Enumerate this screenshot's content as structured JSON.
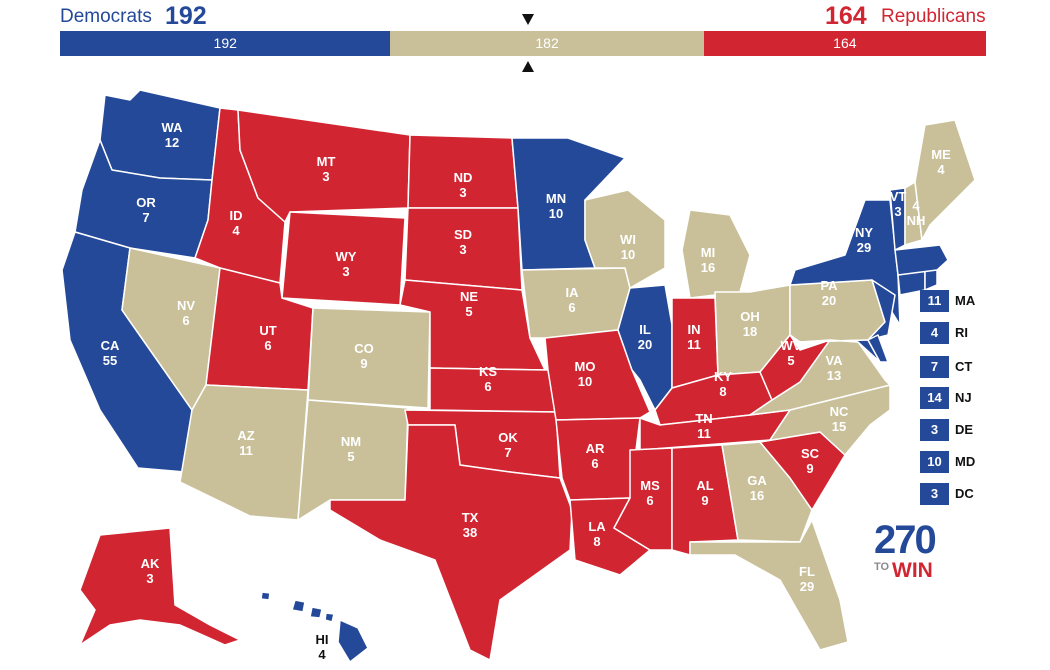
{
  "header": {
    "dem_label": "Democrats",
    "dem_total": "192",
    "rep_total": "164",
    "rep_label": "Republicans",
    "bar": {
      "dem": {
        "value": 192,
        "label": "192"
      },
      "tossup": {
        "value": 182,
        "label": "182"
      },
      "rep": {
        "value": 164,
        "label": "164"
      }
    }
  },
  "colors": {
    "dem": "#244999",
    "rep": "#d22532",
    "tossup": "#c9c09a"
  },
  "states": {
    "WA": {
      "abbr": "WA",
      "ev": "12"
    },
    "OR": {
      "abbr": "OR",
      "ev": "7"
    },
    "CA": {
      "abbr": "CA",
      "ev": "55"
    },
    "NV": {
      "abbr": "NV",
      "ev": "6"
    },
    "ID": {
      "abbr": "ID",
      "ev": "4"
    },
    "MT": {
      "abbr": "MT",
      "ev": "3"
    },
    "WY": {
      "abbr": "WY",
      "ev": "3"
    },
    "UT": {
      "abbr": "UT",
      "ev": "6"
    },
    "AZ": {
      "abbr": "AZ",
      "ev": "11"
    },
    "CO": {
      "abbr": "CO",
      "ev": "9"
    },
    "NM": {
      "abbr": "NM",
      "ev": "5"
    },
    "ND": {
      "abbr": "ND",
      "ev": "3"
    },
    "SD": {
      "abbr": "SD",
      "ev": "3"
    },
    "NE": {
      "abbr": "NE",
      "ev": "5"
    },
    "KS": {
      "abbr": "KS",
      "ev": "6"
    },
    "OK": {
      "abbr": "OK",
      "ev": "7"
    },
    "TX": {
      "abbr": "TX",
      "ev": "38"
    },
    "MN": {
      "abbr": "MN",
      "ev": "10"
    },
    "IA": {
      "abbr": "IA",
      "ev": "6"
    },
    "MO": {
      "abbr": "MO",
      "ev": "10"
    },
    "AR": {
      "abbr": "AR",
      "ev": "6"
    },
    "LA": {
      "abbr": "LA",
      "ev": "8"
    },
    "WI": {
      "abbr": "WI",
      "ev": "10"
    },
    "IL": {
      "abbr": "IL",
      "ev": "20"
    },
    "MI": {
      "abbr": "MI",
      "ev": "16"
    },
    "IN": {
      "abbr": "IN",
      "ev": "11"
    },
    "OH": {
      "abbr": "OH",
      "ev": "18"
    },
    "KY": {
      "abbr": "KY",
      "ev": "8"
    },
    "TN": {
      "abbr": "TN",
      "ev": "11"
    },
    "MS": {
      "abbr": "MS",
      "ev": "6"
    },
    "AL": {
      "abbr": "AL",
      "ev": "9"
    },
    "GA": {
      "abbr": "GA",
      "ev": "16"
    },
    "FL": {
      "abbr": "FL",
      "ev": "29"
    },
    "SC": {
      "abbr": "SC",
      "ev": "9"
    },
    "NC": {
      "abbr": "NC",
      "ev": "15"
    },
    "VA": {
      "abbr": "VA",
      "ev": "13"
    },
    "WV": {
      "abbr": "WV",
      "ev": "5"
    },
    "PA": {
      "abbr": "PA",
      "ev": "20"
    },
    "NY": {
      "abbr": "NY",
      "ev": "29"
    },
    "VT": {
      "abbr": "VT",
      "ev": "3"
    },
    "NH": {
      "abbr": "NH",
      "ev": "4"
    },
    "ME": {
      "abbr": "ME",
      "ev": "4"
    },
    "AK": {
      "abbr": "AK",
      "ev": "3"
    },
    "HI": {
      "abbr": "HI",
      "ev": "4"
    }
  },
  "small_states": [
    {
      "abbr": "MA",
      "ev": "11",
      "party": "dem"
    },
    {
      "abbr": "RI",
      "ev": "4",
      "party": "dem"
    },
    {
      "abbr": "CT",
      "ev": "7",
      "party": "dem"
    },
    {
      "abbr": "NJ",
      "ev": "14",
      "party": "dem"
    },
    {
      "abbr": "DE",
      "ev": "3",
      "party": "dem"
    },
    {
      "abbr": "MD",
      "ev": "10",
      "party": "dem"
    },
    {
      "abbr": "DC",
      "ev": "3",
      "party": "dem"
    }
  ],
  "logo": {
    "number": "270",
    "to": "TO",
    "win": "WIN"
  }
}
